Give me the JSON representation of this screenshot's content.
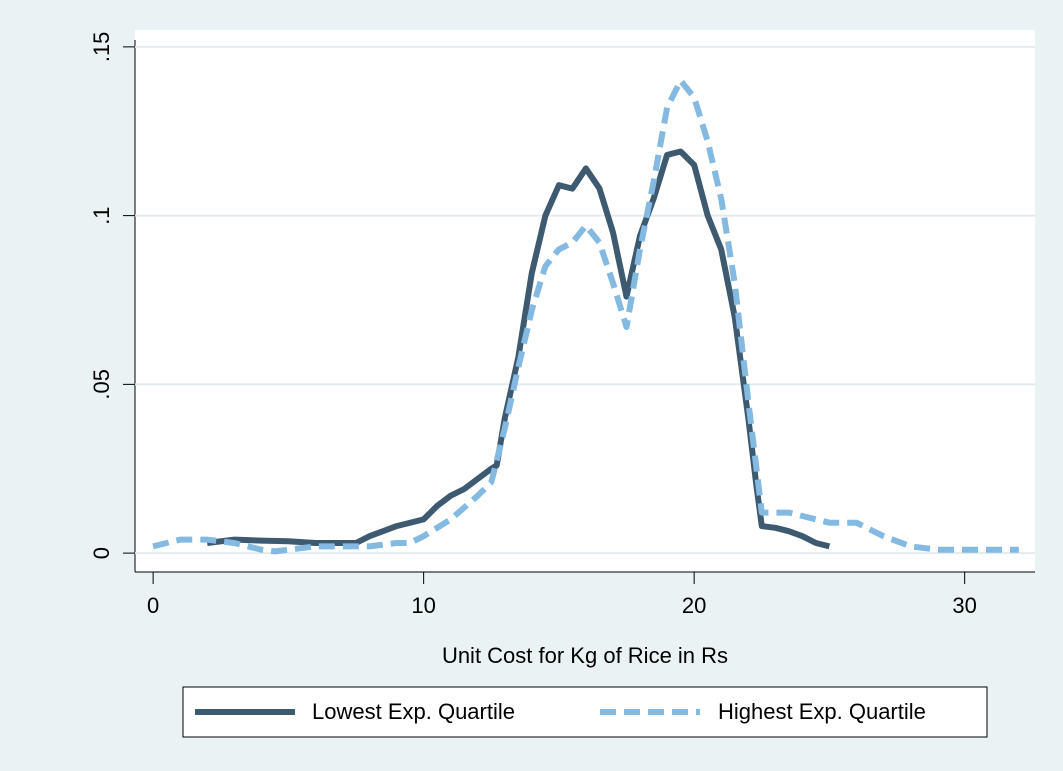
{
  "chart_data": {
    "type": "line",
    "x_label": "Unit Cost for Kg of Rice in Rs",
    "xlim": [
      -0.67,
      32.6
    ],
    "xticks": [
      0,
      10,
      20,
      30
    ],
    "ylim": [
      -0.0056,
      0.155
    ],
    "yticks": [
      0,
      {
        "value": 0.05,
        "label": ".05"
      },
      {
        "value": 0.1,
        "label": ".1"
      },
      {
        "value": 0.15,
        "label": ".15"
      }
    ],
    "grid": true,
    "legend": "bottom",
    "series": [
      {
        "name": "Lowest Exp. Quartile",
        "color": "#3e5a70",
        "dash": false,
        "x": [
          2,
          3,
          4,
          5,
          6,
          7,
          7.5,
          8,
          9,
          10,
          10.5,
          11,
          11.5,
          12,
          12.5,
          12.7,
          13,
          13.5,
          14,
          14.5,
          15,
          15.5,
          16,
          16.5,
          17,
          17.5,
          18,
          18.5,
          19,
          19.5,
          20,
          20.5,
          21,
          21.5,
          22,
          22.3,
          22.5,
          23,
          23.5,
          24,
          24.5,
          25
        ],
        "values": [
          0.003,
          0.004,
          0.0037,
          0.0035,
          0.003,
          0.003,
          0.003,
          0.005,
          0.008,
          0.01,
          0.014,
          0.017,
          0.019,
          0.022,
          0.025,
          0.026,
          0.04,
          0.058,
          0.083,
          0.1,
          0.109,
          0.108,
          0.114,
          0.108,
          0.095,
          0.076,
          0.094,
          0.105,
          0.118,
          0.119,
          0.115,
          0.1,
          0.09,
          0.07,
          0.04,
          0.02,
          0.008,
          0.0075,
          0.0065,
          0.005,
          0.003,
          0.002
        ]
      },
      {
        "name": "Highest Exp. Quartile",
        "color": "#84b9e2",
        "dash": true,
        "x": [
          0,
          1,
          2,
          3,
          4,
          4.5,
          5,
          6,
          7,
          8,
          9,
          9.5,
          10,
          11,
          12,
          12.5,
          13,
          13.5,
          14,
          14.5,
          15,
          15.5,
          16,
          16.5,
          17,
          17.5,
          18,
          18.5,
          19,
          19.5,
          20,
          20.5,
          21,
          21.5,
          22,
          22.5,
          23,
          23.5,
          24,
          25,
          26,
          27,
          28,
          29,
          30,
          31,
          32
        ],
        "values": [
          0.002,
          0.004,
          0.004,
          0.003,
          0.001,
          0.0005,
          0.001,
          0.002,
          0.002,
          0.002,
          0.003,
          0.003,
          0.005,
          0.01,
          0.017,
          0.021,
          0.037,
          0.055,
          0.072,
          0.085,
          0.09,
          0.092,
          0.097,
          0.092,
          0.08,
          0.067,
          0.09,
          0.11,
          0.132,
          0.14,
          0.135,
          0.122,
          0.105,
          0.08,
          0.045,
          0.012,
          0.012,
          0.012,
          0.011,
          0.009,
          0.009,
          0.005,
          0.002,
          0.001,
          0.001,
          0.001,
          0.001
        ]
      }
    ]
  }
}
